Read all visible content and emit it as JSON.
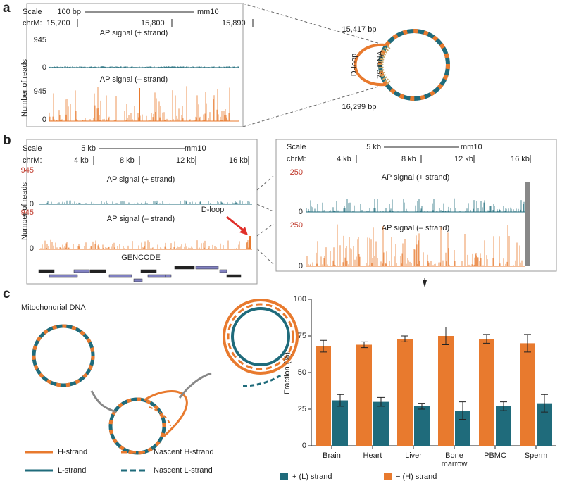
{
  "panel_a": {
    "label": "a",
    "scale": "Scale",
    "scale_bar": "100 bp",
    "assembly": "mm10",
    "chrom": "chrM:",
    "positions": [
      "15,700",
      "15,800",
      "15,890"
    ],
    "track_plus": "AP signal (+ strand)",
    "track_minus": "AP signal (– strand)",
    "y_max": "945",
    "y_zero": "0",
    "y_label": "Number of reads",
    "start": "15,417 bp",
    "end": "16,299 bp",
    "dloop": "D-loop",
    "dna7s": "7S DNA"
  },
  "panel_b": {
    "label": "b",
    "scale": "Scale",
    "scale_bar": "5 kb",
    "assembly": "mm10",
    "chrom": "chrM:",
    "positions": [
      "4 kb",
      "8 kb",
      "12 kb",
      "16 kb"
    ],
    "track_plus": "AP signal (+ strand)",
    "track_minus": "AP signal (– strand)",
    "y_max_left": "945",
    "y_max_right": "250",
    "y_zero": "0",
    "y_label": "Number of reads",
    "dloop": "D-loop",
    "gencode": "GENCODE"
  },
  "panel_c": {
    "label": "c",
    "diagram_title": "Mitochondrial DNA",
    "legend": [
      "H-strand",
      "L-strand",
      "Nascent H-strand",
      "Nascent L-strand"
    ]
  },
  "chart_data": {
    "type": "bar",
    "categories": [
      "Brain",
      "Heart",
      "Liver",
      "Bone marrow",
      "PBMC",
      "Sperm"
    ],
    "series": [
      {
        "name": "+ (L) strand",
        "color": "#1f6b7b",
        "values": [
          31,
          30,
          27,
          24,
          27,
          29
        ],
        "errors": [
          4,
          3,
          2,
          6,
          3,
          6
        ]
      },
      {
        "name": "− (H) strand",
        "color": "#e87a2e",
        "values": [
          68,
          69,
          73,
          75,
          73,
          70
        ],
        "errors": [
          4,
          2,
          2,
          6,
          3,
          6
        ]
      }
    ],
    "ylabel": "Fraction (%)",
    "ylim": [
      0,
      100
    ],
    "yticks": [
      0,
      25,
      50,
      75,
      100
    ],
    "legend": "bottom"
  }
}
